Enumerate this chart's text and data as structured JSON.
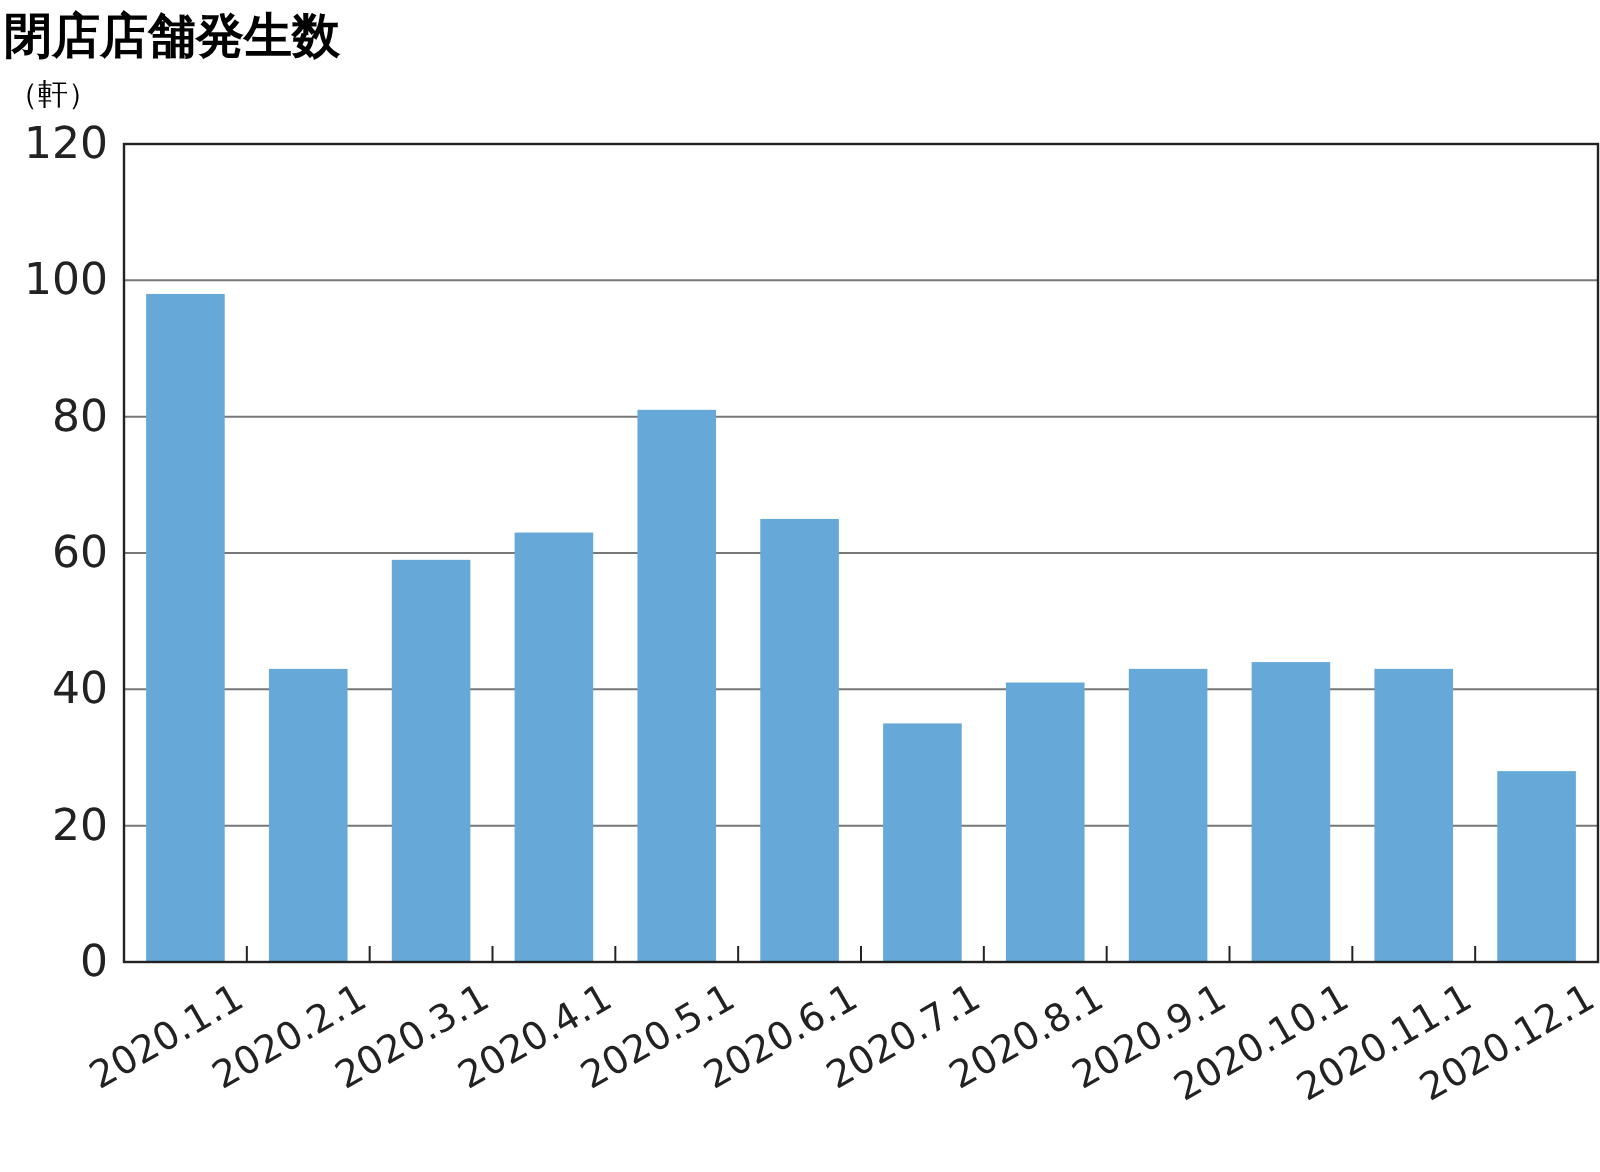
{
  "chart_data": {
    "type": "bar",
    "title": "閉店店舗発生数",
    "ylabel": "（軒）",
    "categories": [
      "2020.1.1",
      "2020.2.1",
      "2020.3.1",
      "2020.4.1",
      "2020.5.1",
      "2020.6.1",
      "2020.7.1",
      "2020.8.1",
      "2020.9.1",
      "2020.10.1",
      "2020.11.1",
      "2020.12.1"
    ],
    "values": [
      98,
      43,
      59,
      63,
      81,
      65,
      35,
      41,
      43,
      44,
      43,
      28
    ],
    "color": "#66a9d8",
    "ylim": [
      0,
      120
    ],
    "yticks": [
      0,
      20,
      40,
      60,
      80,
      100,
      120
    ],
    "grid": "y"
  }
}
